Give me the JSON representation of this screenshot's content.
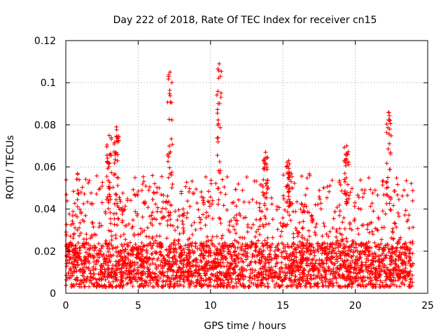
{
  "chart_data": {
    "type": "scatter",
    "title": "Day 222 of 2018, Rate Of TEC Index for receiver cn15",
    "xlabel": "GPS time / hours",
    "ylabel": "ROTI / TECUs",
    "xlim": [
      0,
      25
    ],
    "ylim": [
      0,
      0.12
    ],
    "x_ticks": [
      0,
      5,
      10,
      15,
      20,
      25
    ],
    "x_tick_labels": [
      "0",
      "5",
      "10",
      "15",
      "20",
      "25"
    ],
    "y_ticks": [
      0,
      0.02,
      0.04,
      0.06,
      0.08,
      0.1,
      0.12
    ],
    "y_tick_labels": [
      "0",
      "0.02",
      "0.04",
      "0.06",
      "0.08",
      "0.1",
      "0.12"
    ],
    "grid": true,
    "marker": "plus",
    "color": "#ff0000",
    "x_data_range": [
      0,
      24
    ],
    "baseline_roti": 0.015,
    "typical_max_roti": 0.045,
    "peak_events": [
      {
        "x": 3.0,
        "y": 0.075
      },
      {
        "x": 3.5,
        "y": 0.079
      },
      {
        "x": 7.2,
        "y": 0.105
      },
      {
        "x": 10.6,
        "y": 0.109
      },
      {
        "x": 13.8,
        "y": 0.067
      },
      {
        "x": 15.4,
        "y": 0.063
      },
      {
        "x": 19.4,
        "y": 0.07
      },
      {
        "x": 22.3,
        "y": 0.086
      }
    ]
  }
}
